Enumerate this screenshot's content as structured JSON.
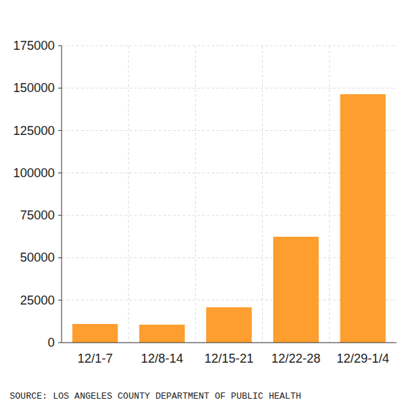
{
  "chart_data": {
    "type": "bar",
    "categories": [
      "12/1-7",
      "12/8-14",
      "12/15-21",
      "12/22-28",
      "12/29-1/4"
    ],
    "values": [
      11000,
      10600,
      20800,
      62400,
      146400
    ],
    "color": "#fd9e2f",
    "ylim": [
      0,
      175000
    ],
    "yticks": [
      0,
      25000,
      50000,
      75000,
      100000,
      125000,
      150000,
      175000
    ],
    "grid": true,
    "source": "SOURCE: LOS ANGELES COUNTY DEPARTMENT OF PUBLIC HEALTH"
  }
}
